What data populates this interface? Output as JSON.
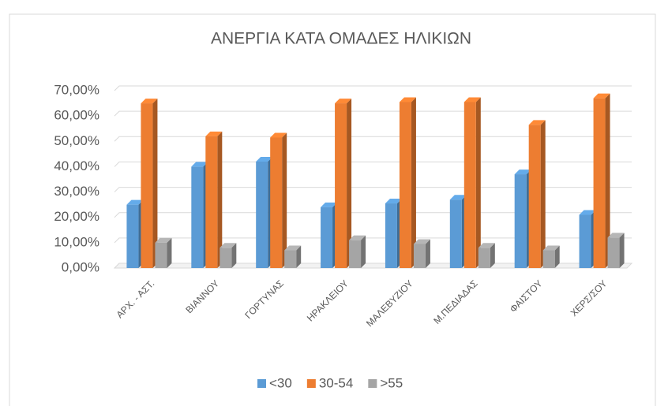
{
  "chart_data": {
    "type": "bar3d",
    "title": "ΑΝΕΡΓΙΑ ΚΑΤΑ ΟΜΑΔΕΣ ΗΛΙΚΙΩΝ",
    "categories": [
      "ΑΡΧ. - ΑΣΤ.",
      "ΒΙΑΝΝΟΥ",
      "ΓΟΡΤΥΝΑΣ",
      "ΗΡΑΚΛΕΙΟΥ",
      "ΜΑΛΕΒΥΖΙΟΥ",
      "Μ.ΠΕΔΙΑΔΑΣ",
      "ΦΑΙΣΤΟΥ",
      "ΧΕΡΣ/ΣΟΥ"
    ],
    "series": [
      {
        "name": "<30",
        "color": "#5b9bd5",
        "values": [
          25,
          40,
          42,
          24,
          25.5,
          27,
          37,
          21
        ]
      },
      {
        "name": "30-54",
        "color": "#ed7d31",
        "values": [
          65,
          52,
          51.5,
          65,
          65.5,
          65.5,
          56.5,
          67
        ]
      },
      {
        "name": ">55",
        "color": "#a5a5a5",
        "values": [
          10,
          8,
          7,
          11,
          9.5,
          8,
          7,
          12
        ]
      }
    ],
    "ylim": [
      0,
      70
    ],
    "yticks": [
      {
        "value": 0,
        "label": "0,00%"
      },
      {
        "value": 10,
        "label": "10,00%"
      },
      {
        "value": 20,
        "label": "20,00%"
      },
      {
        "value": 30,
        "label": "30,00%"
      },
      {
        "value": 40,
        "label": "40,00%"
      },
      {
        "value": 50,
        "label": "50,00%"
      },
      {
        "value": 60,
        "label": "60,00%"
      },
      {
        "value": 70,
        "label": "70,00%"
      }
    ],
    "grid": true,
    "legend": "bottom"
  }
}
